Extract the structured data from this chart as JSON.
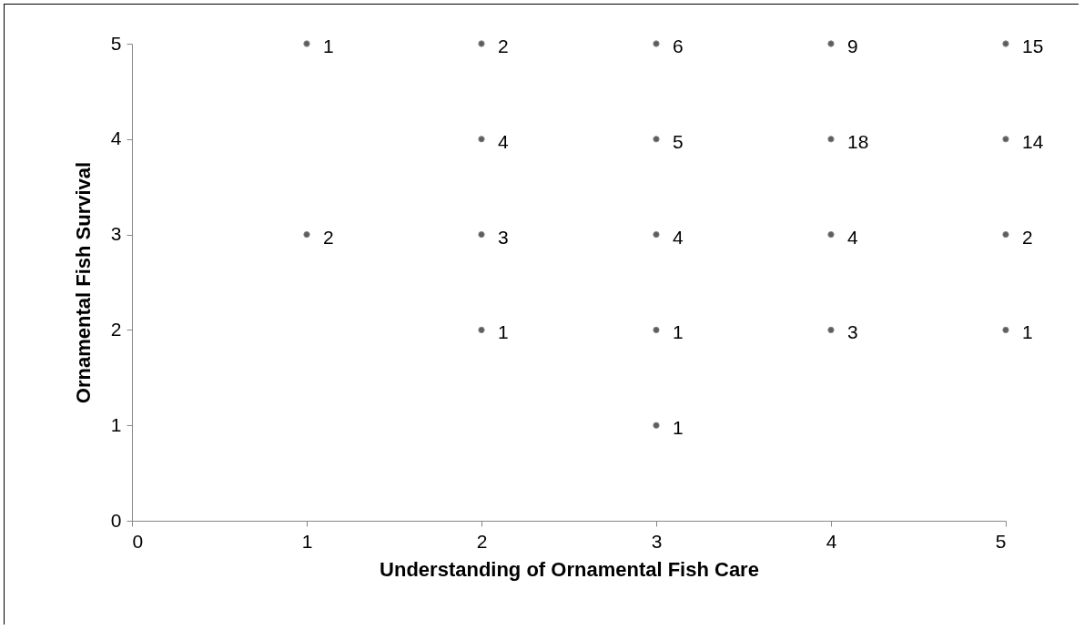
{
  "chart_data": {
    "type": "scatter",
    "xlabel": "Understanding of Ornamental Fish Care",
    "ylabel": "Ornamental Fish Survival",
    "x": [
      1,
      1,
      2,
      2,
      2,
      2,
      3,
      3,
      3,
      3,
      3,
      4,
      4,
      4,
      4,
      5,
      5,
      5,
      5
    ],
    "values": [
      5,
      3,
      5,
      4,
      3,
      2,
      5,
      4,
      3,
      2,
      1,
      5,
      4,
      3,
      2,
      5,
      4,
      3,
      2
    ],
    "annotations": [
      {
        "text": "1",
        "x": 1,
        "y": 5
      },
      {
        "text": "2",
        "x": 1,
        "y": 3
      },
      {
        "text": "2",
        "x": 2,
        "y": 5
      },
      {
        "text": "4",
        "x": 2,
        "y": 4
      },
      {
        "text": "3",
        "x": 2,
        "y": 3
      },
      {
        "text": "1",
        "x": 2,
        "y": 2
      },
      {
        "text": "6",
        "x": 3,
        "y": 5
      },
      {
        "text": "5",
        "x": 3,
        "y": 4
      },
      {
        "text": "4",
        "x": 3,
        "y": 3
      },
      {
        "text": "1",
        "x": 3,
        "y": 2
      },
      {
        "text": "1",
        "x": 3,
        "y": 1
      },
      {
        "text": "9",
        "x": 4,
        "y": 5
      },
      {
        "text": "18",
        "x": 4,
        "y": 4
      },
      {
        "text": "4",
        "x": 4,
        "y": 3
      },
      {
        "text": "3",
        "x": 4,
        "y": 2
      },
      {
        "text": "15",
        "x": 5,
        "y": 5
      },
      {
        "text": "14",
        "x": 5,
        "y": 4
      },
      {
        "text": "2",
        "x": 5,
        "y": 3
      },
      {
        "text": "1",
        "x": 5,
        "y": 2
      }
    ],
    "color": "#1a1a1a",
    "marker": "circle",
    "xlim": [
      0,
      5
    ],
    "xticks": [
      0,
      1,
      2,
      3,
      4,
      5
    ],
    "ylim": [
      0,
      5
    ],
    "yticks": [
      0,
      1,
      2,
      3,
      4,
      5
    ],
    "grid": false
  }
}
